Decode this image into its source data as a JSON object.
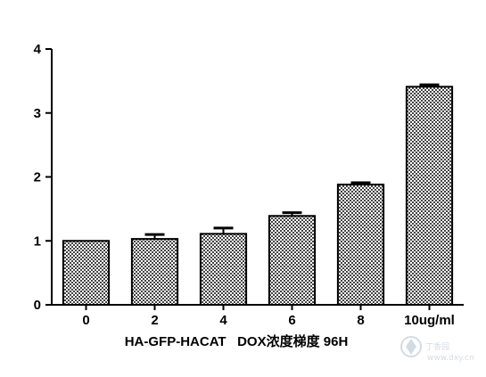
{
  "chart_data": {
    "type": "bar",
    "categories": [
      "0",
      "2",
      "4",
      "6",
      "8",
      "10ug/ml"
    ],
    "values": [
      1.0,
      1.03,
      1.11,
      1.39,
      1.88,
      3.41
    ],
    "errors": [
      0.0,
      0.07,
      0.09,
      0.05,
      0.03,
      0.03
    ],
    "ylim": [
      0,
      4
    ],
    "yticks": [
      0,
      1,
      2,
      3,
      4
    ],
    "xlabel": "HA-GFP-HACAT   DOX浓度梯度 96H",
    "ylabel": "",
    "title": "",
    "bar_fill": "checkered-gray",
    "bar_color": "#000000",
    "grid": false,
    "legend": "none"
  },
  "watermark": {
    "text": "丁香园",
    "subtext": "www.dxy.cn"
  }
}
